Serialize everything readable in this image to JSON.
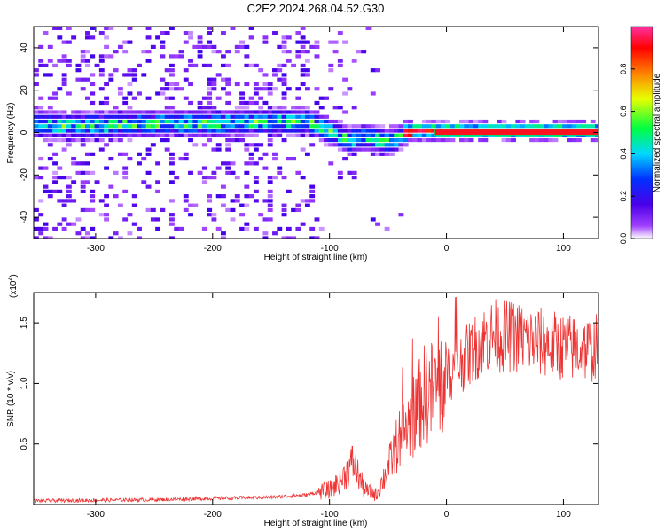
{
  "title": "C2E2.2024.268.04.52.G30",
  "chart_data": [
    {
      "type": "heatmap",
      "xlabel": "Height of straight line (km)",
      "ylabel": "Frequency (Hz)",
      "xlim": [
        -353,
        130
      ],
      "ylim": [
        -50,
        50
      ],
      "xticks": [
        -300,
        -200,
        -100,
        0,
        100
      ],
      "yticks": [
        -40,
        -20,
        0,
        20,
        40
      ],
      "colorbar": {
        "label": "Normalized spectral amplitude",
        "range": [
          0,
          1
        ],
        "ticks": [
          0.0,
          0.2,
          0.4,
          0.6,
          0.8
        ],
        "colormap": [
          "#ffffff",
          "#a040ff",
          "#4a00e8",
          "#0030ff",
          "#00d8ff",
          "#00ff40",
          "#e8ff00",
          "#ff8000",
          "#ff0000",
          "#ff30a0"
        ]
      },
      "ridge": {
        "description_points_x": [
          -350,
          -300,
          -250,
          -200,
          -150,
          -120,
          -100,
          -85,
          -70,
          -55,
          -45,
          -35,
          -25,
          -10,
          0,
          50,
          100,
          130
        ],
        "center_freq": [
          3,
          3,
          4,
          4,
          5,
          5,
          0,
          -4,
          -2,
          -5,
          -3,
          0,
          1,
          1,
          0.5,
          0.5,
          0.5,
          0.5
        ]
      }
    },
    {
      "type": "line",
      "xlabel": "Height of straight line (km)",
      "ylabel": "SNR (10 * v/v)",
      "scale_note": "(x10",
      "scale_exp": "4",
      "xlim": [
        -353,
        130
      ],
      "ylim": [
        0,
        1.75
      ],
      "xticks": [
        -300,
        -200,
        -100,
        0,
        100
      ],
      "yticks": [
        0.5,
        1.0,
        1.5
      ],
      "ytick_labels": [
        "0.5",
        "1.0",
        "1.5"
      ],
      "series": [
        {
          "color": "#ee3333",
          "envelope_x": [
            -353,
            -250,
            -200,
            -150,
            -120,
            -100,
            -90,
            -80,
            -70,
            -60,
            -50,
            -40,
            -30,
            -20,
            -10,
            0,
            10,
            20,
            30,
            40,
            60,
            80,
            100,
            120,
            130
          ],
          "envelope_y": [
            0.03,
            0.04,
            0.05,
            0.06,
            0.08,
            0.12,
            0.2,
            0.35,
            0.12,
            0.08,
            0.3,
            0.55,
            0.7,
            0.9,
            0.95,
            1.05,
            1.15,
            1.25,
            1.35,
            1.4,
            1.38,
            1.34,
            1.3,
            1.28,
            1.3
          ]
        }
      ]
    }
  ]
}
